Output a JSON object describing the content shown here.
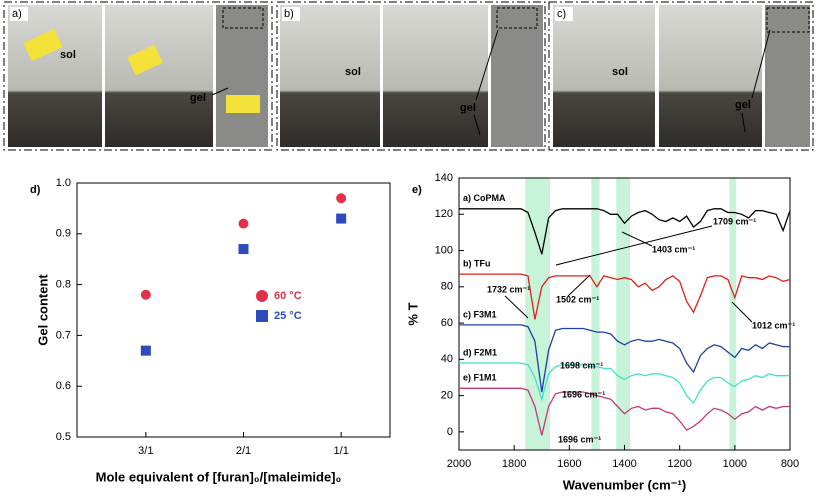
{
  "photos": {
    "panels": [
      {
        "label": "a)",
        "texts": [
          "sol",
          "gel"
        ]
      },
      {
        "label": "b)",
        "texts": [
          "sol",
          "gel"
        ]
      },
      {
        "label": "c)",
        "texts": [
          "sol",
          "gel"
        ]
      }
    ]
  },
  "chart_data": [
    {
      "type": "scatter",
      "panel_label": "d)",
      "x_label": "Mole equivalent of [furan]₀/[maleimide]₀",
      "y_label": "Gel content",
      "categories": [
        "3/1",
        "2/1",
        "1/1"
      ],
      "series": [
        {
          "name": "60 °C",
          "color": "#e0314b",
          "marker": "circle",
          "values": [
            0.78,
            0.92,
            0.97
          ]
        },
        {
          "name": "25 °C",
          "color": "#2b4bbf",
          "marker": "square",
          "values": [
            0.67,
            0.87,
            0.93
          ]
        }
      ],
      "ylim": [
        0.5,
        1.0
      ],
      "yticks": [
        0.5,
        0.6,
        0.7,
        0.8,
        0.9,
        {
          "value": 1.0,
          "label": "1.0"
        }
      ]
    },
    {
      "type": "line",
      "panel_label": "e)",
      "x_label": "Wavenumber (cm⁻¹)",
      "y_label": "% T",
      "x": [
        2000,
        1975,
        1950,
        1925,
        1900,
        1875,
        1850,
        1825,
        1800,
        1775,
        1750,
        1725,
        1700,
        1675,
        1650,
        1625,
        1600,
        1575,
        1550,
        1525,
        1500,
        1475,
        1450,
        1425,
        1400,
        1375,
        1350,
        1325,
        1300,
        1275,
        1250,
        1225,
        1200,
        1175,
        1150,
        1125,
        1100,
        1075,
        1050,
        1025,
        1000,
        975,
        950,
        925,
        900,
        875,
        850,
        825,
        800
      ],
      "series": [
        {
          "name": "a) CoPMA",
          "color": "#000000",
          "values": [
            123,
            123,
            123,
            123,
            123,
            123,
            123,
            123,
            123,
            123,
            121,
            110,
            98,
            118,
            122,
            123,
            123,
            123,
            123,
            123,
            123,
            122,
            120,
            120,
            115,
            119,
            121,
            122,
            120,
            117,
            116,
            118,
            116,
            119,
            113,
            116,
            122,
            123,
            123,
            121,
            121,
            120,
            118,
            122,
            122,
            121,
            120,
            111,
            122
          ]
        },
        {
          "name": "b) TFu",
          "color": "#e0201c",
          "values": [
            87,
            87,
            87,
            87,
            87,
            87,
            87,
            87,
            87,
            87,
            86,
            62,
            80,
            85,
            86,
            86,
            86,
            86,
            86,
            86,
            80,
            86,
            85,
            84,
            85,
            84,
            80,
            82,
            78,
            80,
            84,
            86,
            83,
            72,
            66,
            75,
            85,
            86,
            86,
            84,
            74,
            86,
            85,
            85,
            84,
            86,
            85,
            83,
            84
          ]
        },
        {
          "name": "c) F3M1",
          "color": "#1f3ea6",
          "values": [
            59,
            59,
            59,
            59,
            59,
            59,
            59,
            59,
            59,
            59,
            58,
            50,
            22,
            45,
            56,
            57,
            57,
            57,
            57,
            56,
            55,
            55,
            54,
            50,
            48,
            50,
            51,
            50,
            50,
            51,
            50,
            49,
            46,
            38,
            33,
            42,
            46,
            48,
            47,
            44,
            41,
            46,
            45,
            48,
            46,
            49,
            48,
            47,
            47
          ]
        },
        {
          "name": "d) F2M1",
          "color": "#3fe0c8",
          "values": [
            38,
            38,
            38,
            38,
            38,
            38,
            38,
            38,
            38,
            38,
            37,
            30,
            18,
            32,
            36,
            37,
            37,
            37,
            37,
            36,
            36,
            35,
            35,
            31,
            29,
            31,
            32,
            31,
            32,
            32,
            31,
            30,
            27,
            20,
            16,
            23,
            28,
            30,
            30,
            27,
            25,
            28,
            29,
            31,
            30,
            32,
            31,
            31,
            31
          ]
        },
        {
          "name": "e) F1M1",
          "color": "#c2397a",
          "values": [
            24,
            24,
            24,
            24,
            24,
            24,
            24,
            24,
            24,
            24,
            23,
            14,
            -2,
            14,
            21,
            22,
            22,
            22,
            22,
            21,
            20,
            19,
            18,
            14,
            10,
            13,
            14,
            12,
            13,
            13,
            11,
            10,
            6,
            1,
            3,
            6,
            10,
            13,
            12,
            10,
            7,
            10,
            11,
            14,
            12,
            14,
            13,
            14,
            14
          ]
        }
      ],
      "highlight_bands": [
        [
          1760,
          1670
        ],
        [
          1520,
          1490
        ],
        [
          1430,
          1380
        ],
        [
          1020,
          995
        ]
      ],
      "annotations": [
        "1709 cm⁻¹",
        "1403 cm⁻¹",
        "1732 cm⁻¹",
        "1502 cm⁻¹",
        "1012 cm⁻¹",
        "1698 cm⁻¹",
        "1696 cm⁻¹",
        "1696 cm⁻¹"
      ],
      "xlim": [
        2000,
        800
      ],
      "xticks": [
        2000,
        1800,
        1600,
        1400,
        1200,
        1000,
        800
      ],
      "ylim": [
        -10,
        140
      ],
      "yticks": [
        0,
        20,
        40,
        60,
        80,
        100,
        120,
        140
      ]
    }
  ]
}
